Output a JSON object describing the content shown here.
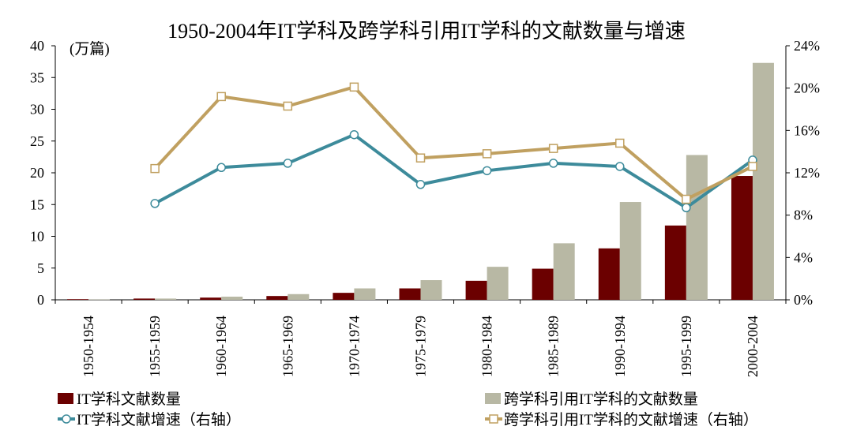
{
  "chart_data": {
    "type": "bar+line",
    "title": "1950-2004年IT学科及跨学科引用IT学科的文献数量与增速",
    "left_axis_unit": "(万篇)",
    "categories": [
      "1950-1954",
      "1955-1959",
      "1960-1964",
      "1965-1969",
      "1970-1974",
      "1975-1979",
      "1980-1984",
      "1985-1989",
      "1990-1994",
      "1995-1999",
      "2000-2004"
    ],
    "left_axis": {
      "min": 0,
      "max": 40,
      "ticks": [
        "0",
        "5",
        "10",
        "15",
        "20",
        "25",
        "30",
        "35",
        "40"
      ]
    },
    "right_axis": {
      "min": 0,
      "max": 24,
      "ticks": [
        "0%",
        "4%",
        "8%",
        "12%",
        "16%",
        "20%",
        "24%"
      ]
    },
    "bar_series": [
      {
        "name": "IT学科文献数量",
        "color": "#6b0000",
        "values": [
          0.1,
          0.2,
          0.35,
          0.6,
          1.1,
          1.8,
          3.0,
          4.9,
          8.1,
          11.7,
          19.5
        ]
      },
      {
        "name": "跨学科引用IT学科的文献数量",
        "color": "#b8b8a4",
        "values": [
          0.05,
          0.2,
          0.5,
          0.9,
          1.8,
          3.1,
          5.2,
          8.9,
          15.4,
          22.8,
          37.3
        ]
      }
    ],
    "line_series": [
      {
        "name": "IT学科文献增速（右轴）",
        "color": "#3d8b9b",
        "marker": "circle",
        "values": [
          null,
          9.1,
          12.5,
          12.9,
          15.6,
          10.9,
          12.2,
          12.9,
          12.6,
          8.7,
          13.2
        ]
      },
      {
        "name": "跨学科引用IT学科的文献增速（右轴）",
        "color": "#c0a060",
        "marker": "square",
        "values": [
          null,
          12.4,
          19.2,
          18.3,
          20.1,
          13.4,
          13.8,
          14.3,
          14.8,
          9.5,
          12.6
        ]
      }
    ]
  }
}
